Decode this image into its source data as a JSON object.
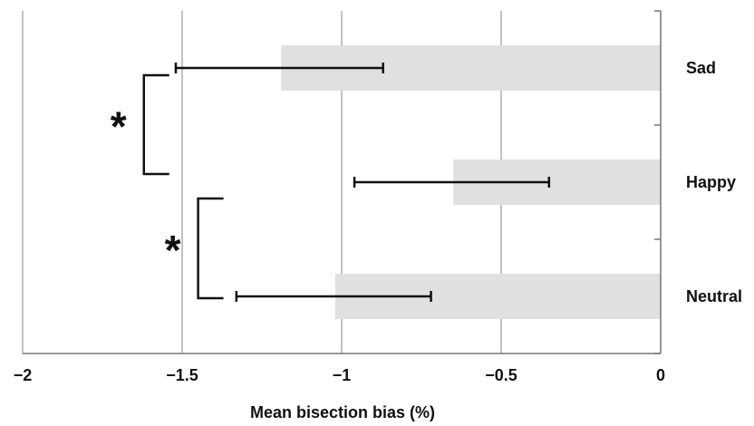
{
  "chart_data": {
    "type": "bar",
    "orientation": "horizontal",
    "categories": [
      "Sad",
      "Happy",
      "Neutral"
    ],
    "values": [
      -1.19,
      -0.65,
      -1.02
    ],
    "error_bars": [
      {
        "low": -1.52,
        "high": -0.87
      },
      {
        "low": -0.96,
        "high": -0.35
      },
      {
        "low": -1.33,
        "high": -0.72
      }
    ],
    "xlabel": "Mean bisection bias (%)",
    "ylabel": "",
    "title": "",
    "xlim": [
      -2,
      0
    ],
    "x_ticks": [
      -2,
      -1.5,
      -1,
      -0.5,
      0
    ],
    "x_tick_labels": [
      "−2",
      "−1.5",
      "−1",
      "−0.5",
      "0"
    ],
    "grid": "vertical",
    "legend": "none",
    "significance": [
      {
        "between": [
          "Sad",
          "Happy"
        ],
        "label": "*"
      },
      {
        "between": [
          "Happy",
          "Neutral"
        ],
        "label": "*"
      }
    ],
    "colors": {
      "bar": "#e0e0e0",
      "grid": "#9a9a9a",
      "ink": "#111111"
    }
  }
}
